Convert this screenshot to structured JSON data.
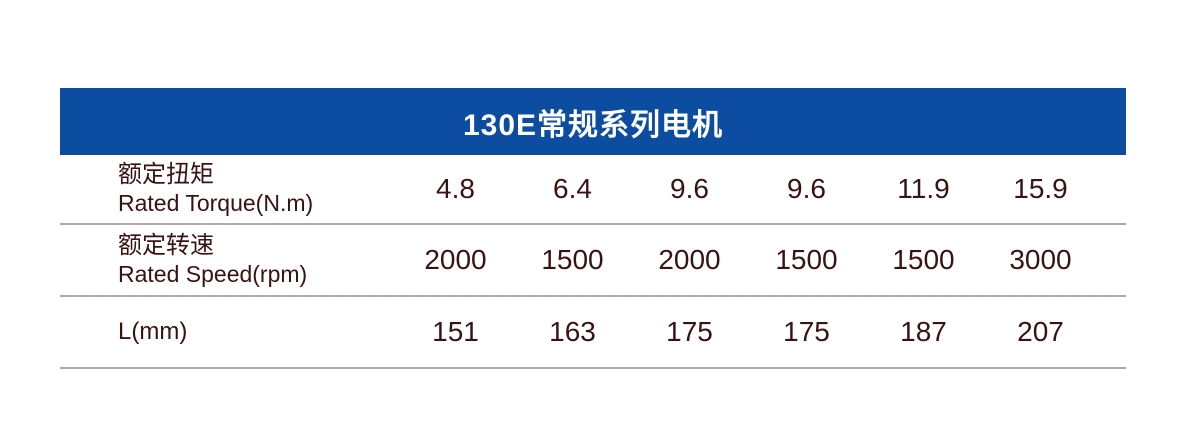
{
  "table": {
    "title": "130E常规系列电机",
    "rows": [
      {
        "label_zh": "额定扭矩",
        "label_en": "Rated Torque(N.m)",
        "values": [
          "4.8",
          "6.4",
          "9.6",
          "9.6",
          "11.9",
          "15.9"
        ]
      },
      {
        "label_zh": "额定转速",
        "label_en": "Rated Speed(rpm)",
        "values": [
          "2000",
          "1500",
          "2000",
          "1500",
          "1500",
          "3000"
        ]
      },
      {
        "label_zh": "L(mm)",
        "label_en": "",
        "values": [
          "151",
          "163",
          "175",
          "175",
          "187",
          "207"
        ]
      }
    ],
    "colors": {
      "header_bg": "#0c4da2",
      "header_text": "#ffffff",
      "body_text": "#3a1212",
      "divider": "#b5a6aa",
      "page_background": "#ffffff"
    }
  }
}
